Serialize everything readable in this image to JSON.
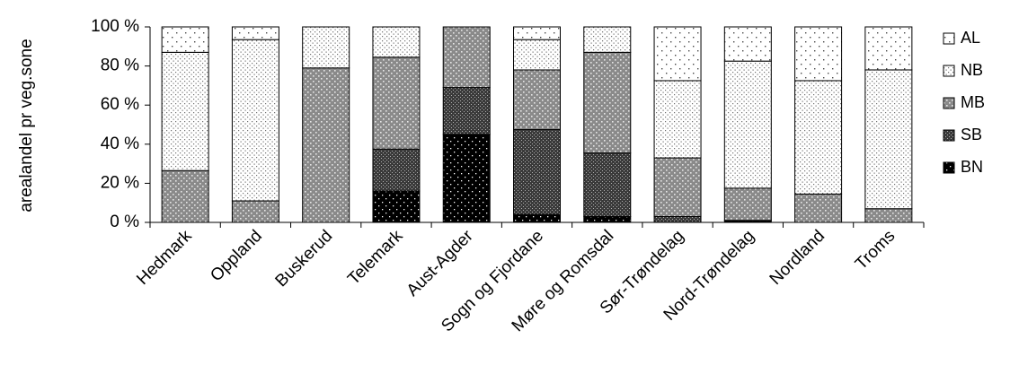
{
  "chart_data": {
    "type": "bar",
    "stacked": true,
    "percent": true,
    "title": "",
    "xlabel": "",
    "ylabel": "arealandel pr veg.sone",
    "ylim": [
      0,
      100
    ],
    "yticks": [
      "0 %",
      "20 %",
      "40 %",
      "60 %",
      "80 %",
      "100 %"
    ],
    "categories": [
      "Hedmark",
      "Oppland",
      "Buskerud",
      "Telemark",
      "Aust-Agder",
      "Sogn og Fjordane",
      "Møre og Romsdal",
      "Sør-Trøndelag",
      "Nord-Trøndelag",
      "Nordland",
      "Troms"
    ],
    "series": [
      {
        "name": "BN",
        "pattern": "solid-black-dots",
        "values": [
          0,
          0,
          0,
          16,
          45,
          4,
          3,
          0,
          1,
          0,
          0
        ]
      },
      {
        "name": "SB",
        "pattern": "dense-dark",
        "values": [
          0,
          0,
          0,
          21.5,
          24,
          43.5,
          32.5,
          3,
          0,
          0,
          0
        ]
      },
      {
        "name": "MB",
        "pattern": "medium-grey",
        "values": [
          26.5,
          11,
          79,
          47,
          31,
          30.5,
          51.5,
          30,
          16.5,
          14.5,
          7
        ]
      },
      {
        "name": "NB",
        "pattern": "fine-light",
        "values": [
          60.5,
          82.5,
          21,
          15.5,
          0,
          15.5,
          13,
          39.5,
          65,
          58,
          71
        ]
      },
      {
        "name": "AL",
        "pattern": "sparse-dots",
        "values": [
          13,
          6.5,
          0,
          0,
          0,
          6.5,
          0,
          27.5,
          17.5,
          27.5,
          22
        ]
      }
    ],
    "legend": {
      "position": "right",
      "order": [
        "AL",
        "NB",
        "MB",
        "SB",
        "BN"
      ]
    },
    "grid": false
  }
}
